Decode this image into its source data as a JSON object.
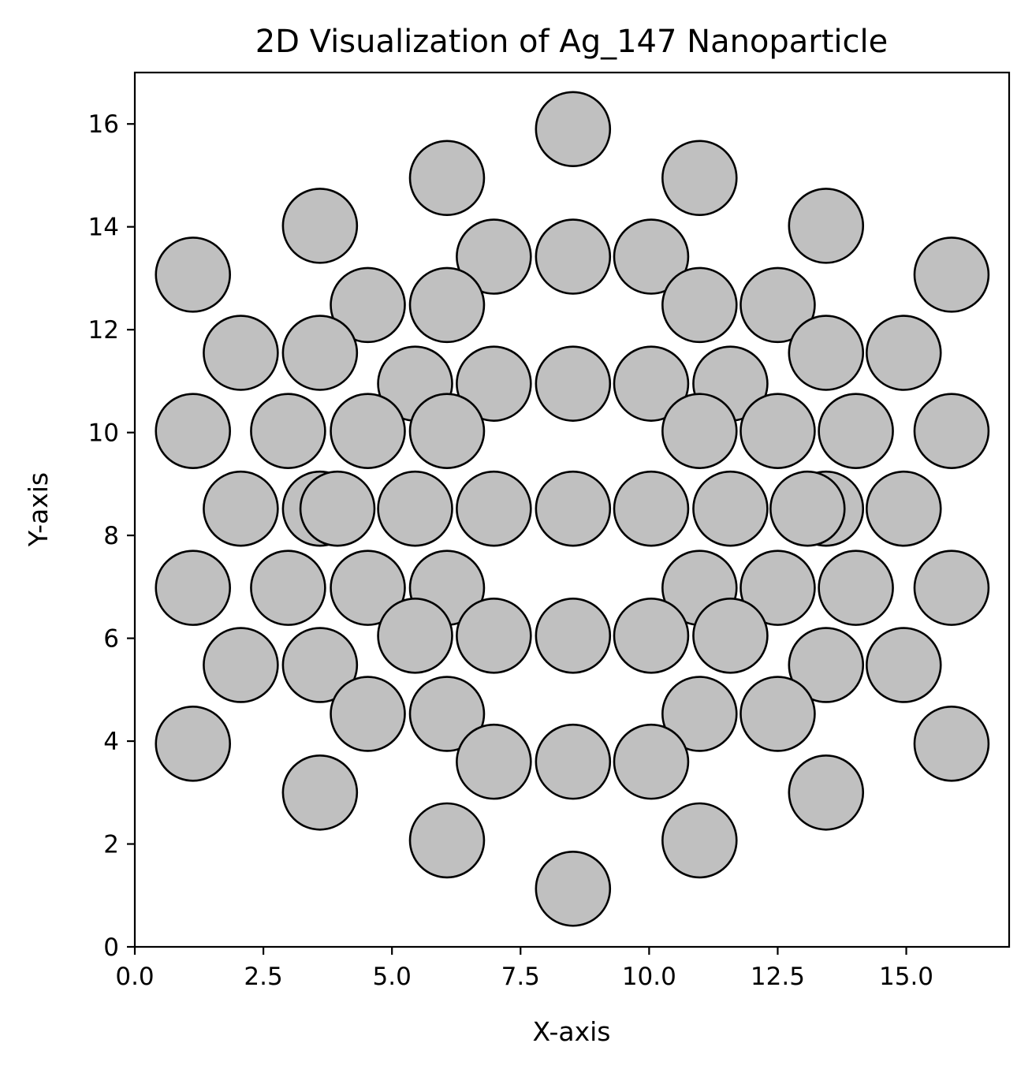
{
  "chart_data": {
    "type": "scatter",
    "title": "2D Visualization of Ag_147 Nanoparticle",
    "xlabel": "X-axis",
    "ylabel": "Y-axis",
    "xlim": [
      0,
      17
    ],
    "ylim": [
      0,
      17
    ],
    "x_ticks": [
      0,
      2.5,
      5,
      7.5,
      10,
      12.5,
      15
    ],
    "x_tick_labels": [
      "0.0",
      "2.5",
      "5.0",
      "7.5",
      "10.0",
      "12.5",
      "15.0"
    ],
    "y_ticks": [
      0,
      2,
      4,
      6,
      8,
      10,
      12,
      14,
      16
    ],
    "y_tick_labels": [
      "0",
      "2",
      "4",
      "6",
      "8",
      "10",
      "12",
      "14",
      "16"
    ],
    "grid": false,
    "atom_radius": 0.72,
    "marker_fill": "#c0c0c0",
    "marker_edge": "#000000",
    "points": [
      [
        8.52,
        15.9
      ],
      [
        6.07,
        14.95
      ],
      [
        10.98,
        14.95
      ],
      [
        3.6,
        14.02
      ],
      [
        13.44,
        14.02
      ],
      [
        1.13,
        13.07
      ],
      [
        15.88,
        13.07
      ],
      [
        6.98,
        13.42
      ],
      [
        8.52,
        13.42
      ],
      [
        10.04,
        13.42
      ],
      [
        4.53,
        12.48
      ],
      [
        6.07,
        12.48
      ],
      [
        10.98,
        12.48
      ],
      [
        12.5,
        12.48
      ],
      [
        2.06,
        11.55
      ],
      [
        3.6,
        11.55
      ],
      [
        13.44,
        11.55
      ],
      [
        14.95,
        11.55
      ],
      [
        5.45,
        10.95
      ],
      [
        6.98,
        10.95
      ],
      [
        8.52,
        10.95
      ],
      [
        10.04,
        10.95
      ],
      [
        11.58,
        10.95
      ],
      [
        1.13,
        10.03
      ],
      [
        2.98,
        10.03
      ],
      [
        4.53,
        10.03
      ],
      [
        6.07,
        10.03
      ],
      [
        10.98,
        10.03
      ],
      [
        12.5,
        10.03
      ],
      [
        14.02,
        10.03
      ],
      [
        15.88,
        10.03
      ],
      [
        2.06,
        8.52
      ],
      [
        3.6,
        8.52
      ],
      [
        3.94,
        8.52
      ],
      [
        5.45,
        8.52
      ],
      [
        6.98,
        8.52
      ],
      [
        8.52,
        8.52
      ],
      [
        10.04,
        8.52
      ],
      [
        11.58,
        8.52
      ],
      [
        13.44,
        8.52
      ],
      [
        13.08,
        8.52
      ],
      [
        14.95,
        8.52
      ],
      [
        1.13,
        6.98
      ],
      [
        2.98,
        6.98
      ],
      [
        4.53,
        6.98
      ],
      [
        6.07,
        6.98
      ],
      [
        10.98,
        6.98
      ],
      [
        12.5,
        6.98
      ],
      [
        14.02,
        6.98
      ],
      [
        15.88,
        6.98
      ],
      [
        5.45,
        6.05
      ],
      [
        6.98,
        6.05
      ],
      [
        8.52,
        6.05
      ],
      [
        10.04,
        6.05
      ],
      [
        11.58,
        6.05
      ],
      [
        2.06,
        5.48
      ],
      [
        3.6,
        5.48
      ],
      [
        13.44,
        5.48
      ],
      [
        14.95,
        5.48
      ],
      [
        4.53,
        4.53
      ],
      [
        6.07,
        4.53
      ],
      [
        10.98,
        4.53
      ],
      [
        12.5,
        4.53
      ],
      [
        1.13,
        3.95
      ],
      [
        15.88,
        3.95
      ],
      [
        6.98,
        3.6
      ],
      [
        8.52,
        3.6
      ],
      [
        10.04,
        3.6
      ],
      [
        3.6,
        3.0
      ],
      [
        13.44,
        3.0
      ],
      [
        6.07,
        2.07
      ],
      [
        10.98,
        2.07
      ],
      [
        8.52,
        1.13
      ]
    ]
  }
}
